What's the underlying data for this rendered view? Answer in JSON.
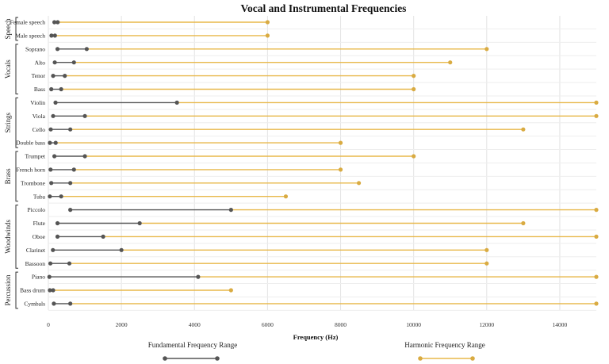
{
  "chart_data": {
    "type": "dumbbell",
    "title": "Vocal and Instrumental Frequencies",
    "xlabel": "Frequency (Hz)",
    "xlim": [
      0,
      15000
    ],
    "xticks": [
      "0",
      "2000",
      "4000",
      "6000",
      "8000",
      "10000",
      "12000",
      "14000"
    ],
    "grid": true,
    "colors": {
      "fundamental": "#555555",
      "harmonic": "#e8b84a"
    },
    "legend": [
      {
        "key": "fundamental",
        "label": "Fundamental Frequency Range"
      },
      {
        "key": "harmonic",
        "label": "Harmonic Frequency Range"
      }
    ],
    "groups": [
      {
        "name": "Speech",
        "items": [
          {
            "label": "Female speech",
            "fundamental": [
              165,
              255
            ],
            "harmonic": [
              255,
              6000
            ]
          },
          {
            "label": "Male speech",
            "fundamental": [
              85,
              180
            ],
            "harmonic": [
              180,
              6000
            ]
          }
        ]
      },
      {
        "name": "Vocals",
        "items": [
          {
            "label": "Soprano",
            "fundamental": [
              250,
              1050
            ],
            "harmonic": [
              1050,
              12000
            ]
          },
          {
            "label": "Alto",
            "fundamental": [
              175,
              700
            ],
            "harmonic": [
              700,
              11000
            ]
          },
          {
            "label": "Tenor",
            "fundamental": [
              130,
              450
            ],
            "harmonic": [
              450,
              10000
            ]
          },
          {
            "label": "Bass",
            "fundamental": [
              80,
              350
            ],
            "harmonic": [
              350,
              10000
            ]
          }
        ]
      },
      {
        "name": "Strings",
        "items": [
          {
            "label": "Violin",
            "fundamental": [
              196,
              3520
            ],
            "harmonic": [
              3520,
              15000
            ]
          },
          {
            "label": "Viola",
            "fundamental": [
              130,
              1000
            ],
            "harmonic": [
              1000,
              15000
            ]
          },
          {
            "label": "Cello",
            "fundamental": [
              65,
              600
            ],
            "harmonic": [
              600,
              13000
            ]
          },
          {
            "label": "Double bass",
            "fundamental": [
              41,
              200
            ],
            "harmonic": [
              200,
              8000
            ]
          }
        ]
      },
      {
        "name": "Brass",
        "items": [
          {
            "label": "Trumpet",
            "fundamental": [
              165,
              1000
            ],
            "harmonic": [
              1000,
              10000
            ]
          },
          {
            "label": "French horn",
            "fundamental": [
              60,
              700
            ],
            "harmonic": [
              700,
              8000
            ]
          },
          {
            "label": "Trombone",
            "fundamental": [
              80,
              600
            ],
            "harmonic": [
              600,
              8500
            ]
          },
          {
            "label": "Tuba",
            "fundamental": [
              40,
              350
            ],
            "harmonic": [
              350,
              6500
            ]
          }
        ]
      },
      {
        "name": "Woodwinds",
        "items": [
          {
            "label": "Piccolo",
            "fundamental": [
              600,
              5000
            ],
            "harmonic": [
              5000,
              15000
            ]
          },
          {
            "label": "Flute",
            "fundamental": [
              250,
              2500
            ],
            "harmonic": [
              2500,
              13000
            ]
          },
          {
            "label": "Oboe",
            "fundamental": [
              250,
              1500
            ],
            "harmonic": [
              1500,
              15000
            ]
          },
          {
            "label": "Clarinet",
            "fundamental": [
              125,
              2000
            ],
            "harmonic": [
              2000,
              12000
            ]
          },
          {
            "label": "Bassoon",
            "fundamental": [
              55,
              575
            ],
            "harmonic": [
              575,
              12000
            ]
          }
        ]
      },
      {
        "name": "Percussion",
        "items": [
          {
            "label": "Piano",
            "fundamental": [
              27,
              4100
            ],
            "harmonic": [
              4100,
              15000
            ]
          },
          {
            "label": "Bass drum",
            "fundamental": [
              40,
              130
            ],
            "harmonic": [
              130,
              5000
            ]
          },
          {
            "label": "Cymbals",
            "fundamental": [
              150,
              600
            ],
            "harmonic": [
              600,
              15000
            ]
          }
        ]
      }
    ]
  }
}
